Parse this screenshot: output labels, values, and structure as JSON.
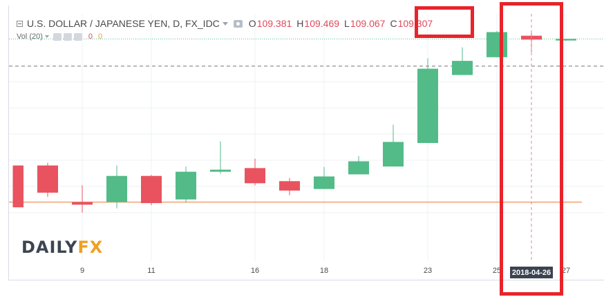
{
  "chart_data": {
    "type": "candlestick",
    "title": "U.S. DOLLAR / JAPANESE YEN, D, FX_IDC",
    "x_ticks": [
      "9",
      "11",
      "16",
      "18",
      "23",
      "25",
      "27"
    ],
    "candles": [
      {
        "open": 106.9,
        "high": 106.9,
        "low": 106.1,
        "close": 106.1
      },
      {
        "open": 106.9,
        "high": 106.95,
        "low": 106.3,
        "close": 106.38
      },
      {
        "open": 106.2,
        "high": 106.52,
        "low": 106.0,
        "close": 106.15
      },
      {
        "open": 106.2,
        "high": 106.9,
        "low": 106.08,
        "close": 106.7
      },
      {
        "open": 106.7,
        "high": 106.72,
        "low": 106.14,
        "close": 106.18
      },
      {
        "open": 106.25,
        "high": 106.88,
        "low": 106.19,
        "close": 106.78
      },
      {
        "open": 106.78,
        "high": 107.36,
        "low": 106.74,
        "close": 106.82
      },
      {
        "open": 106.85,
        "high": 107.03,
        "low": 106.52,
        "close": 106.56
      },
      {
        "open": 106.6,
        "high": 106.66,
        "low": 106.33,
        "close": 106.42
      },
      {
        "open": 106.45,
        "high": 106.87,
        "low": 106.45,
        "close": 106.69
      },
      {
        "open": 106.73,
        "high": 107.08,
        "low": 106.73,
        "close": 106.98
      },
      {
        "open": 106.88,
        "high": 107.68,
        "low": 106.88,
        "close": 107.35
      },
      {
        "open": 107.33,
        "high": 108.95,
        "low": 107.33,
        "close": 108.75
      },
      {
        "open": 108.63,
        "high": 109.16,
        "low": 108.63,
        "close": 108.9
      },
      {
        "open": 108.97,
        "high": 109.47,
        "low": 108.97,
        "close": 109.45
      },
      {
        "open": 109.381,
        "high": 109.469,
        "low": 109.067,
        "close": 109.307
      },
      {
        "open": 109.29,
        "high": 109.29,
        "low": 109.28,
        "close": 109.32
      }
    ],
    "ohlc_readout": {
      "open": "109.381",
      "high": "109.469",
      "low": "109.067",
      "close": "109.307"
    },
    "horizontal_lines": {
      "dashed": 108.8,
      "solid": 106.2
    },
    "crosshair_date": "2018-04-26",
    "volume_study": {
      "label": "Vol (20)",
      "value_a": "0",
      "value_b": "0"
    },
    "colors": {
      "up": "#52bb88",
      "down": "#e8535f",
      "grid": "#edf0f3",
      "dashed": "#777777",
      "solid": "#f0a070",
      "highlight": "#e8242a"
    }
  },
  "legend": {
    "title": "U.S. DOLLAR / JAPANESE YEN, D, FX_IDC",
    "o_key": "O",
    "o": "109.381",
    "h_key": "H",
    "h": "109.469",
    "l_key": "L",
    "l": "109.067",
    "c_key": "C",
    "c": "109.307"
  },
  "volume": {
    "label": "Vol (20)",
    "value_a": "0",
    "value_b": "0"
  },
  "crosshair_date": "2018-04-26",
  "logo": {
    "part_a": "DAILY",
    "part_b": "FX"
  }
}
